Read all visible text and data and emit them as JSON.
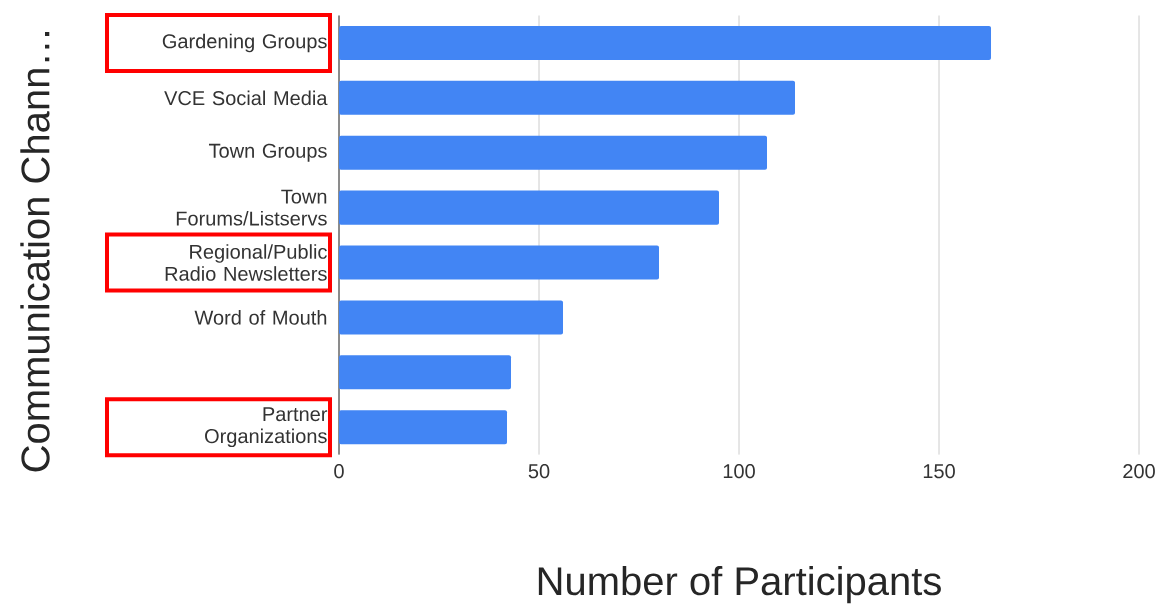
{
  "chart_data": {
    "type": "bar",
    "orientation": "horizontal",
    "ylabel": "Communication Chann…",
    "xlabel": "Number of Participants",
    "categories": [
      "Gardening Groups",
      "VCE Social Media",
      "Town Groups",
      "Town Forums/Listservs",
      "Regional/Public Radio Newsletters",
      "Word of Mouth",
      null,
      "Partner Organizations"
    ],
    "values": [
      163,
      114,
      107,
      95,
      80,
      56,
      43,
      42
    ],
    "color": "#4285f4",
    "xlim": [
      0,
      200
    ],
    "xticks": [
      0,
      50,
      100,
      150,
      200
    ],
    "grid": "x"
  }
}
